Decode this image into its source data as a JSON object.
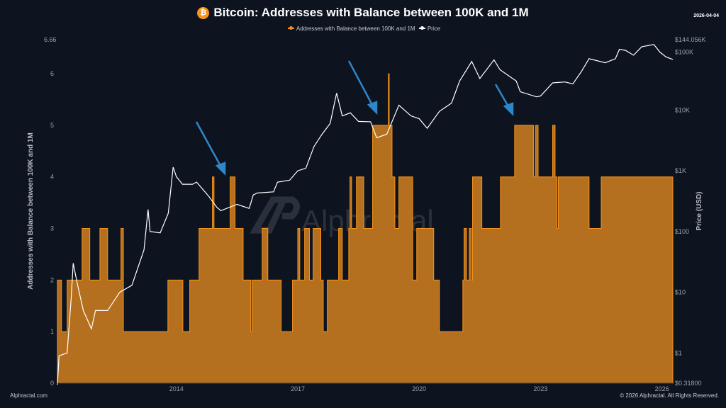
{
  "header": {
    "title": "Bitcoin: Addresses with Balance between 100K and 1M",
    "coin_icon": "bitcoin-icon",
    "date": "2026-04-04"
  },
  "footer": {
    "left": "Alphractal.com",
    "right": "© 2026 Alphractal. All Rights Reserved."
  },
  "watermark": "Alphractal",
  "colors": {
    "background": "#0d1420",
    "addresses_fill": "#b5701f",
    "addresses_line": "#f7931a",
    "price": "#ffffff",
    "arrows": "#2f86c8"
  },
  "chart_data": {
    "type": "area+line",
    "title": "Bitcoin: Addresses with Balance between 100K and 1M",
    "legend": {
      "position": "top",
      "entries": [
        "Addresses with Balance between 100K and 1M",
        "Price"
      ]
    },
    "xlabel": "",
    "x_ticks": [
      "2014",
      "2017",
      "2020",
      "2023",
      "2026"
    ],
    "xlim": [
      2011.06,
      2026.27
    ],
    "y_left": {
      "label": "Addresses with Balance between 100K and 1M",
      "range": [
        0,
        6.66
      ],
      "ticks": [
        "0",
        "1",
        "2",
        "3",
        "4",
        "5",
        "6",
        "6.66"
      ]
    },
    "y_right": {
      "label": "Price (USD)",
      "scale": "log",
      "range": [
        0.318,
        144056
      ],
      "ticks": [
        "$0.31800",
        "$1",
        "$10",
        "$100",
        "$1K",
        "$10K",
        "$100K",
        "$144.056K"
      ]
    },
    "grid": false,
    "series": [
      {
        "name": "Addresses with Balance between 100K and 1M",
        "type": "step-area",
        "axis": "left",
        "points": [
          [
            2011.06,
            2
          ],
          [
            2011.16,
            1
          ],
          [
            2011.3,
            2
          ],
          [
            2011.67,
            3
          ],
          [
            2011.86,
            2
          ],
          [
            2012.11,
            3
          ],
          [
            2012.3,
            2
          ],
          [
            2012.63,
            3
          ],
          [
            2012.69,
            1
          ],
          [
            2013.79,
            2
          ],
          [
            2014.16,
            1
          ],
          [
            2014.33,
            2
          ],
          [
            2014.56,
            3
          ],
          [
            2014.89,
            4
          ],
          [
            2014.93,
            3
          ],
          [
            2015.33,
            4
          ],
          [
            2015.45,
            3
          ],
          [
            2015.65,
            2
          ],
          [
            2015.84,
            1
          ],
          [
            2015.87,
            2
          ],
          [
            2016.12,
            3
          ],
          [
            2016.26,
            2
          ],
          [
            2016.59,
            1
          ],
          [
            2016.87,
            2
          ],
          [
            2017.0,
            3
          ],
          [
            2017.05,
            2
          ],
          [
            2017.17,
            3
          ],
          [
            2017.29,
            2
          ],
          [
            2017.38,
            3
          ],
          [
            2017.57,
            2
          ],
          [
            2017.63,
            1
          ],
          [
            2017.73,
            2
          ],
          [
            2018.01,
            3
          ],
          [
            2018.1,
            2
          ],
          [
            2018.26,
            3
          ],
          [
            2018.29,
            4
          ],
          [
            2018.33,
            3
          ],
          [
            2018.45,
            4
          ],
          [
            2018.63,
            3
          ],
          [
            2018.85,
            5
          ],
          [
            2019.24,
            6
          ],
          [
            2019.26,
            5
          ],
          [
            2019.33,
            4
          ],
          [
            2019.4,
            3
          ],
          [
            2019.5,
            4
          ],
          [
            2019.84,
            2
          ],
          [
            2019.94,
            3
          ],
          [
            2020.36,
            2
          ],
          [
            2020.5,
            1
          ],
          [
            2021.08,
            2
          ],
          [
            2021.11,
            3
          ],
          [
            2021.17,
            2
          ],
          [
            2021.24,
            3
          ],
          [
            2021.29,
            2
          ],
          [
            2021.32,
            4
          ],
          [
            2021.55,
            3
          ],
          [
            2022.01,
            4
          ],
          [
            2022.36,
            5
          ],
          [
            2022.83,
            4
          ],
          [
            2022.88,
            5
          ],
          [
            2022.94,
            4
          ],
          [
            2023.3,
            5
          ],
          [
            2023.36,
            4
          ],
          [
            2023.41,
            3
          ],
          [
            2023.44,
            4
          ],
          [
            2024.2,
            3
          ],
          [
            2024.5,
            4
          ],
          [
            2026.27,
            4
          ]
        ]
      },
      {
        "name": "Price",
        "type": "line",
        "axis": "right",
        "points": [
          [
            2011.06,
            0.3
          ],
          [
            2011.1,
            0.9
          ],
          [
            2011.3,
            1.0
          ],
          [
            2011.4,
            8
          ],
          [
            2011.45,
            30
          ],
          [
            2011.55,
            14
          ],
          [
            2011.7,
            5
          ],
          [
            2011.9,
            2.5
          ],
          [
            2012.0,
            5
          ],
          [
            2012.3,
            5
          ],
          [
            2012.6,
            10
          ],
          [
            2012.9,
            13
          ],
          [
            2013.2,
            50
          ],
          [
            2013.3,
            230
          ],
          [
            2013.35,
            100
          ],
          [
            2013.6,
            95
          ],
          [
            2013.8,
            200
          ],
          [
            2013.92,
            1150
          ],
          [
            2014.0,
            800
          ],
          [
            2014.15,
            600
          ],
          [
            2014.4,
            600
          ],
          [
            2014.5,
            650
          ],
          [
            2014.8,
            380
          ],
          [
            2015.0,
            250
          ],
          [
            2015.1,
            220
          ],
          [
            2015.5,
            280
          ],
          [
            2015.8,
            240
          ],
          [
            2015.9,
            400
          ],
          [
            2016.0,
            430
          ],
          [
            2016.4,
            450
          ],
          [
            2016.5,
            650
          ],
          [
            2016.8,
            700
          ],
          [
            2017.0,
            1000
          ],
          [
            2017.2,
            1100
          ],
          [
            2017.4,
            2500
          ],
          [
            2017.6,
            4000
          ],
          [
            2017.8,
            6000
          ],
          [
            2017.96,
            19000
          ],
          [
            2018.1,
            8000
          ],
          [
            2018.3,
            9000
          ],
          [
            2018.5,
            6500
          ],
          [
            2018.8,
            6400
          ],
          [
            2018.95,
            3500
          ],
          [
            2019.2,
            4000
          ],
          [
            2019.5,
            12000
          ],
          [
            2019.8,
            8000
          ],
          [
            2020.0,
            7200
          ],
          [
            2020.2,
            5000
          ],
          [
            2020.5,
            9500
          ],
          [
            2020.8,
            13000
          ],
          [
            2021.0,
            30000
          ],
          [
            2021.3,
            63000
          ],
          [
            2021.5,
            33000
          ],
          [
            2021.85,
            67000
          ],
          [
            2022.0,
            46000
          ],
          [
            2022.4,
            30000
          ],
          [
            2022.5,
            20000
          ],
          [
            2022.9,
            16500
          ],
          [
            2023.0,
            17000
          ],
          [
            2023.3,
            28000
          ],
          [
            2023.6,
            29000
          ],
          [
            2023.8,
            27000
          ],
          [
            2024.0,
            42000
          ],
          [
            2024.2,
            70000
          ],
          [
            2024.6,
            60000
          ],
          [
            2024.85,
            70000
          ],
          [
            2024.95,
            100000
          ],
          [
            2025.1,
            96000
          ],
          [
            2025.3,
            80000
          ],
          [
            2025.5,
            110000
          ],
          [
            2025.8,
            120000
          ],
          [
            2025.95,
            90000
          ],
          [
            2026.1,
            75000
          ],
          [
            2026.27,
            68000
          ]
        ]
      }
    ],
    "annotations": [
      {
        "type": "arrow",
        "target_year": 2015.3
      },
      {
        "type": "arrow",
        "target_year": 2018.9
      },
      {
        "type": "arrow",
        "target_year": 2022.3
      }
    ]
  }
}
